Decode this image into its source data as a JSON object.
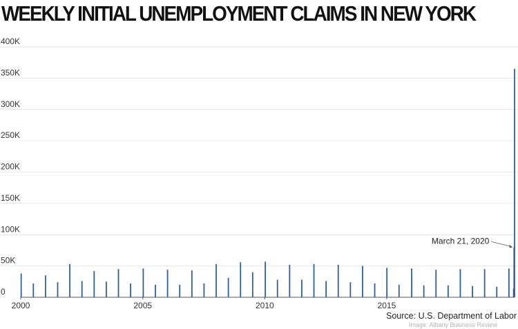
{
  "colors": {
    "bar": "#2f5f97",
    "grid": "#e6e6e6",
    "text": "#333333"
  },
  "chart_data": {
    "type": "bar",
    "title": "WEEKLY INITIAL UNEMPLOYMENT CLAIMS IN NEW YORK",
    "xlabel": "",
    "ylabel": "",
    "ylim": [
      0,
      400000
    ],
    "xlim": [
      "2000-01-01",
      "2020-03-28"
    ],
    "grid": true,
    "y_ticks": [
      {
        "value": 0,
        "label": "0"
      },
      {
        "value": 50000,
        "label": "50K"
      },
      {
        "value": 100000,
        "label": "100K"
      },
      {
        "value": 150000,
        "label": "150K"
      },
      {
        "value": 200000,
        "label": "200K"
      },
      {
        "value": 250000,
        "label": "250K"
      },
      {
        "value": 300000,
        "label": "300K"
      },
      {
        "value": 350000,
        "label": "350K"
      },
      {
        "value": 400000,
        "label": "400K"
      }
    ],
    "x_ticks": [
      {
        "value": "2000-01-01",
        "label": "2000"
      },
      {
        "value": "2005-01-01",
        "label": "2005"
      },
      {
        "value": "2010-01-01",
        "label": "2010"
      },
      {
        "value": "2015-01-01",
        "label": "2015"
      }
    ],
    "series": [
      {
        "x": [
          "2000-01-08",
          "2000-07-08",
          "2001-01-06",
          "2001-07-07",
          "2002-01-05",
          "2002-07-06",
          "2003-01-04",
          "2003-07-05",
          "2004-01-03",
          "2004-07-03",
          "2005-01-08",
          "2005-07-09",
          "2006-01-07",
          "2006-07-08",
          "2007-01-06",
          "2007-07-07",
          "2008-01-05",
          "2008-07-05",
          "2009-01-03",
          "2009-07-04",
          "2010-01-09",
          "2010-07-10",
          "2011-01-08",
          "2011-07-09",
          "2012-01-07",
          "2012-07-07",
          "2013-01-05",
          "2013-07-06",
          "2014-01-04",
          "2014-07-05",
          "2015-01-03",
          "2015-07-04",
          "2016-01-09",
          "2016-07-09",
          "2017-01-07",
          "2017-07-08",
          "2018-01-06",
          "2018-07-07",
          "2019-01-05",
          "2019-07-06",
          "2020-01-04",
          "2020-03-14",
          "2020-03-21",
          "2020-03-28"
        ],
        "values": [
          38000,
          22000,
          35000,
          24000,
          53000,
          26000,
          42000,
          25000,
          45000,
          22000,
          46000,
          20000,
          44000,
          20000,
          43000,
          22000,
          53000,
          31000,
          56000,
          40000,
          57000,
          28000,
          52000,
          28000,
          53000,
          26000,
          52000,
          24000,
          50000,
          22000,
          47000,
          20000,
          46000,
          19000,
          44000,
          19000,
          45000,
          18000,
          45000,
          17000,
          46000,
          14000,
          80000,
          365000
        ]
      }
    ],
    "annotations": [
      {
        "text": "March 21, 2020",
        "x": "2020-03-21",
        "y": 80000
      }
    ]
  },
  "source": "Source: U.S. Department of Labor",
  "credit": "Image: Albany Business Review"
}
